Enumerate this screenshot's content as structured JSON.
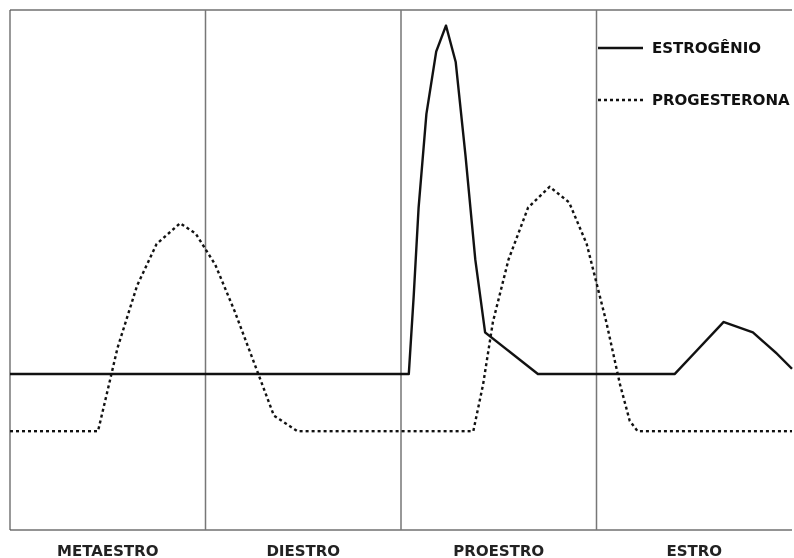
{
  "chart_data": {
    "type": "line",
    "title": "",
    "xlabel": "",
    "ylabel": "",
    "categories": [
      "METAESTRO",
      "DIESTRO",
      "PROESTRO",
      "ESTRO"
    ],
    "x_range": [
      0,
      4
    ],
    "y_range": [
      0,
      1
    ],
    "grid": false,
    "legend_position": "top-right",
    "series": [
      {
        "name": "ESTROGÊNIO",
        "style": "solid",
        "color": "#111111",
        "points": [
          [
            0.0,
            0.3
          ],
          [
            2.04,
            0.3
          ],
          [
            2.065,
            0.45
          ],
          [
            2.09,
            0.62
          ],
          [
            2.13,
            0.8
          ],
          [
            2.18,
            0.92
          ],
          [
            2.23,
            0.97
          ],
          [
            2.28,
            0.9
          ],
          [
            2.33,
            0.72
          ],
          [
            2.38,
            0.52
          ],
          [
            2.43,
            0.38
          ],
          [
            2.7,
            0.3
          ],
          [
            3.4,
            0.3
          ],
          [
            3.5,
            0.34
          ],
          [
            3.65,
            0.4
          ],
          [
            3.8,
            0.38
          ],
          [
            3.92,
            0.34
          ],
          [
            4.0,
            0.31
          ]
        ]
      },
      {
        "name": "PROGESTERONA",
        "style": "dashed",
        "color": "#111111",
        "points": [
          [
            0.0,
            0.19
          ],
          [
            0.45,
            0.19
          ],
          [
            0.5,
            0.27
          ],
          [
            0.55,
            0.35
          ],
          [
            0.65,
            0.47
          ],
          [
            0.75,
            0.55
          ],
          [
            0.87,
            0.59
          ],
          [
            0.95,
            0.57
          ],
          [
            1.05,
            0.51
          ],
          [
            1.15,
            0.42
          ],
          [
            1.25,
            0.32
          ],
          [
            1.35,
            0.22
          ],
          [
            1.47,
            0.19
          ],
          [
            2.37,
            0.19
          ],
          [
            2.42,
            0.28
          ],
          [
            2.47,
            0.4
          ],
          [
            2.55,
            0.52
          ],
          [
            2.65,
            0.62
          ],
          [
            2.76,
            0.66
          ],
          [
            2.86,
            0.63
          ],
          [
            2.95,
            0.55
          ],
          [
            3.05,
            0.4
          ],
          [
            3.12,
            0.28
          ],
          [
            3.17,
            0.21
          ],
          [
            3.21,
            0.19
          ],
          [
            4.0,
            0.19
          ]
        ]
      }
    ]
  }
}
